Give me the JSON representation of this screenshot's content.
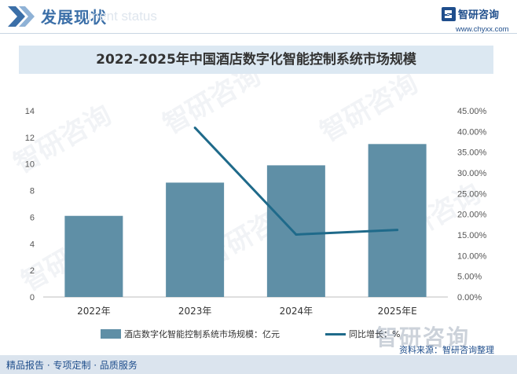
{
  "header": {
    "title": "发展现状",
    "watermark": "ment status",
    "brand_name": "智研咨询",
    "brand_url": "www.chyxx.com"
  },
  "watermarks": [
    "智研咨询",
    "智研咨询",
    "智研咨询",
    "智研咨询",
    "智研咨询",
    "智研咨询"
  ],
  "big_watermark": "智研咨询",
  "chart_data": {
    "type": "bar",
    "title": "2022-2025年中国酒店数字化智能控制系统市场规模",
    "categories": [
      "2022年",
      "2023年",
      "2024年",
      "2025年E"
    ],
    "series": [
      {
        "name": "酒店数字化智能控制系统市场规模：亿元",
        "type": "bar",
        "axis": "left",
        "values": [
          6.1,
          8.6,
          9.9,
          11.5
        ],
        "color": "#5f8fa6"
      },
      {
        "name": "同比增长：%",
        "type": "line",
        "axis": "right",
        "values": [
          null,
          40.9,
          15.1,
          16.2
        ],
        "color": "#1f6a8a"
      }
    ],
    "y_left": {
      "min": 0,
      "max": 14,
      "ticks": [
        "0",
        "2",
        "4",
        "6",
        "8",
        "10",
        "12",
        "14"
      ]
    },
    "y_right": {
      "min": 0,
      "max": 45,
      "ticks": [
        "0.00%",
        "5.00%",
        "10.00%",
        "15.00%",
        "20.00%",
        "25.00%",
        "30.00%",
        "35.00%",
        "40.00%",
        "45.00%"
      ]
    },
    "grid": false,
    "legend_position": "bottom"
  },
  "source": "资料来源：智研咨询整理",
  "footer": "精品报告 · 专项定制 · 品质服务"
}
